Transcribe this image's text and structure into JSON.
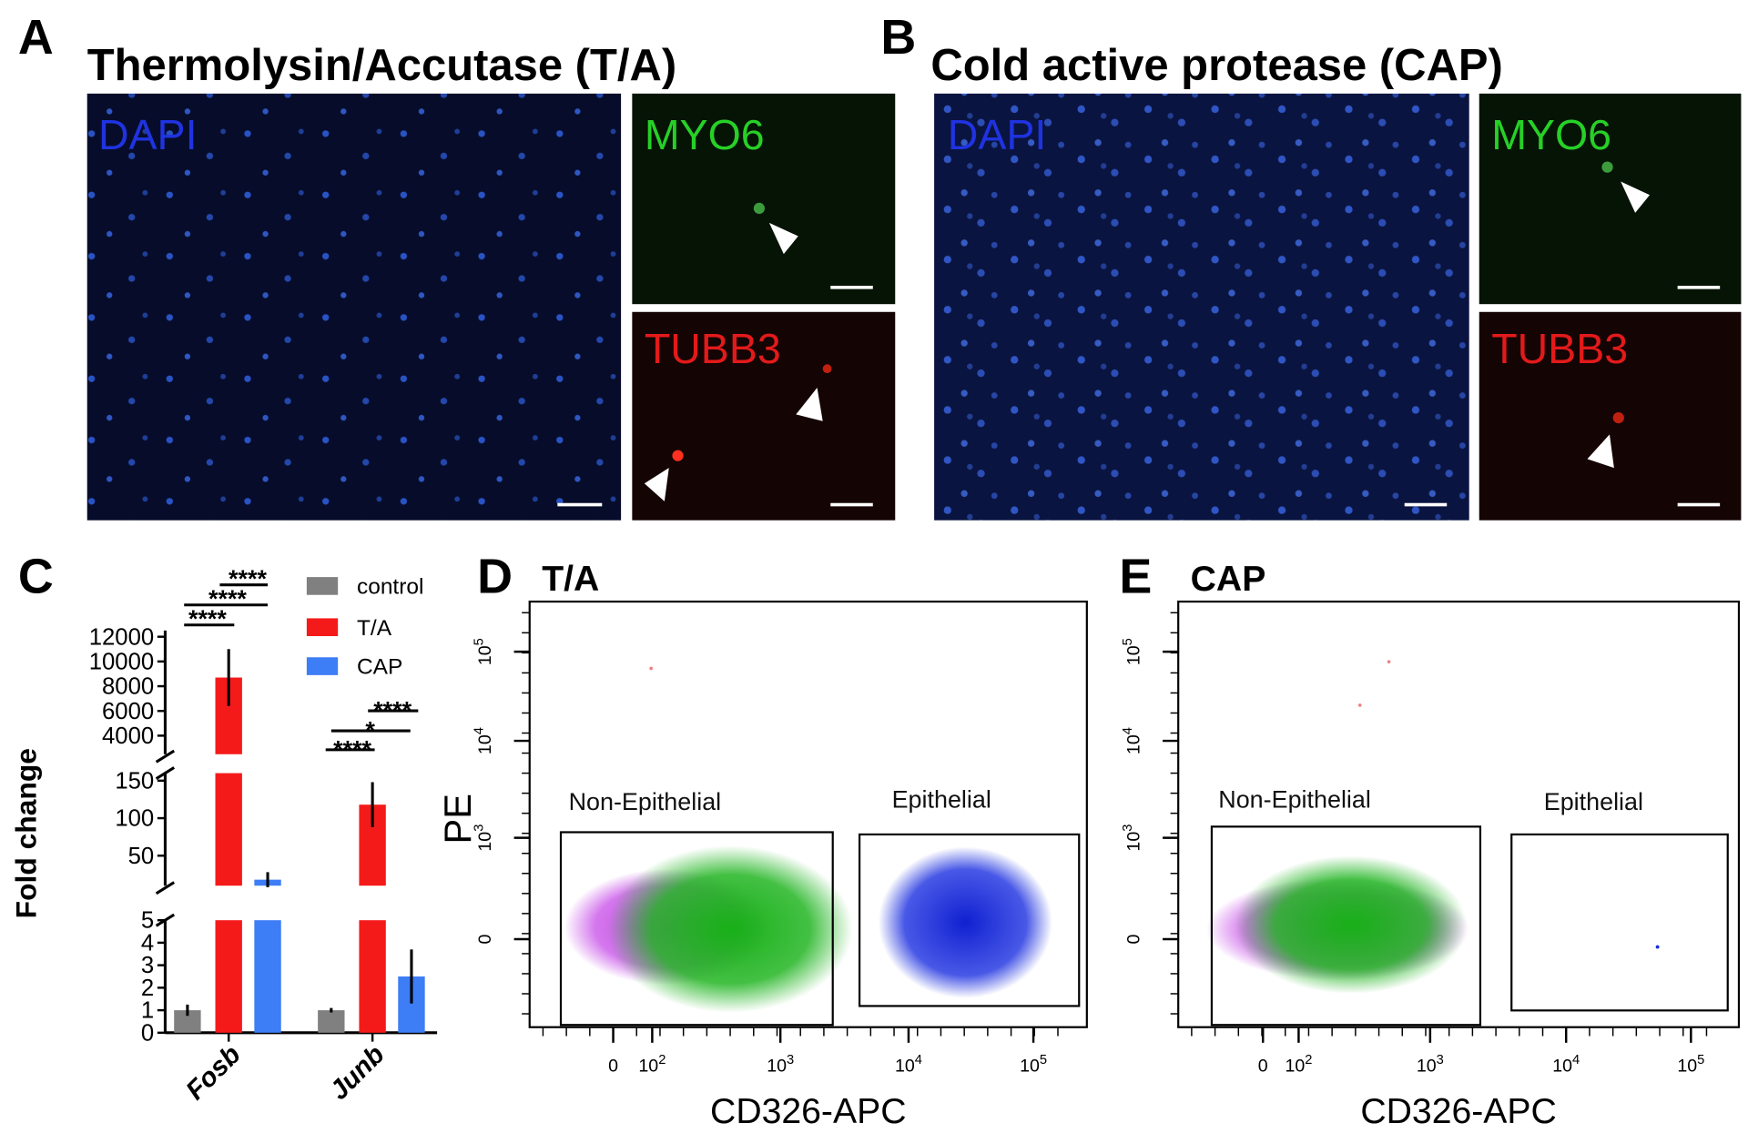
{
  "panels": {
    "A": {
      "letter": "A",
      "title": "Thermolysin/Accutase (T/A)",
      "dapi": "DAPI",
      "myo6": "MYO6",
      "tubb3": "TUBB3"
    },
    "B": {
      "letter": "B",
      "title": "Cold active protease (CAP)",
      "dapi": "DAPI",
      "myo6": "MYO6",
      "tubb3": "TUBB3"
    },
    "D": {
      "letter": "D",
      "title": "T/A",
      "y_label": "PE",
      "x_label": "CD326-APC",
      "gates": [
        "Non-Epithelial",
        "Epithelial"
      ],
      "xticks": [
        "0",
        {
          "base": "10",
          "exp": "2"
        },
        {
          "base": "10",
          "exp": "3"
        },
        {
          "base": "10",
          "exp": "4"
        },
        {
          "base": "10",
          "exp": "5"
        }
      ],
      "yticks": [
        {
          "base": "10",
          "exp": "5"
        },
        {
          "base": "10",
          "exp": "4"
        },
        {
          "base": "10",
          "exp": "3"
        },
        "0"
      ]
    },
    "E": {
      "letter": "E",
      "title": "CAP",
      "x_label": "CD326-APC",
      "gates": [
        "Non-Epithelial",
        "Epithelial"
      ],
      "xticks": [
        "0",
        {
          "base": "10",
          "exp": "2"
        },
        {
          "base": "10",
          "exp": "3"
        },
        {
          "base": "10",
          "exp": "4"
        },
        {
          "base": "10",
          "exp": "5"
        }
      ],
      "yticks": [
        {
          "base": "10",
          "exp": "5"
        },
        {
          "base": "10",
          "exp": "4"
        },
        {
          "base": "10",
          "exp": "3"
        },
        "0"
      ]
    }
  },
  "chart_data": {
    "type": "bar",
    "panel_label": "C",
    "y_label": "Fold change",
    "categories": [
      "Fosb",
      "Junb"
    ],
    "series": [
      {
        "name": "control",
        "color": "#808080",
        "values": [
          1,
          1
        ],
        "errors": [
          0.25,
          0.1
        ]
      },
      {
        "name": "T/A",
        "color": "#f51a1a",
        "values": [
          8700,
          118
        ],
        "errors": [
          2300,
          30
        ]
      },
      {
        "name": "CAP",
        "color": "#3d7df5",
        "values": [
          18,
          2.5
        ],
        "errors": [
          10,
          1.2
        ]
      }
    ],
    "y_segments": [
      {
        "ylim": [
          0,
          5
        ],
        "yticks": [
          0,
          1,
          2,
          3,
          4,
          5
        ]
      },
      {
        "ylim": [
          10,
          160
        ],
        "yticks": [
          50,
          100,
          150
        ]
      },
      {
        "ylim": [
          2500,
          12500
        ],
        "yticks": [
          4000,
          6000,
          8000,
          10000,
          12000
        ]
      }
    ],
    "annotations": [
      "****",
      "****",
      "****",
      "****",
      "*",
      "****"
    ]
  }
}
